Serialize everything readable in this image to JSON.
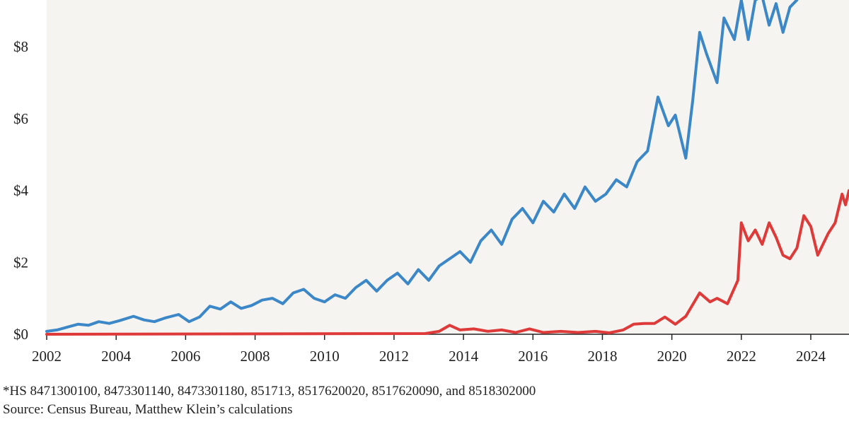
{
  "chart_data": {
    "type": "line",
    "title": "",
    "xlabel": "",
    "ylabel": "",
    "xlim": [
      2002,
      2025.1
    ],
    "ylim": [
      0,
      9.3
    ],
    "grid": false,
    "x_ticks": [
      2002,
      2004,
      2006,
      2008,
      2010,
      2012,
      2014,
      2016,
      2018,
      2020,
      2022,
      2024
    ],
    "x_tick_labels": [
      "2002",
      "2004",
      "2006",
      "2008",
      "2010",
      "2012",
      "2014",
      "2016",
      "2018",
      "2020",
      "2022",
      "2024"
    ],
    "y_ticks": [
      0,
      2,
      4,
      6,
      8
    ],
    "y_tick_labels": [
      "$0",
      "$2",
      "$4",
      "$6",
      "$8"
    ],
    "series": [
      {
        "name": "blue-series",
        "color": "#3b87c7",
        "points": [
          [
            2002.0,
            0.08
          ],
          [
            2002.3,
            0.12
          ],
          [
            2002.6,
            0.2
          ],
          [
            2002.9,
            0.28
          ],
          [
            2003.2,
            0.25
          ],
          [
            2003.5,
            0.35
          ],
          [
            2003.8,
            0.3
          ],
          [
            2004.1,
            0.38
          ],
          [
            2004.5,
            0.5
          ],
          [
            2004.8,
            0.4
          ],
          [
            2005.1,
            0.35
          ],
          [
            2005.4,
            0.45
          ],
          [
            2005.8,
            0.55
          ],
          [
            2006.1,
            0.35
          ],
          [
            2006.4,
            0.48
          ],
          [
            2006.7,
            0.78
          ],
          [
            2007.0,
            0.7
          ],
          [
            2007.3,
            0.9
          ],
          [
            2007.6,
            0.72
          ],
          [
            2007.9,
            0.8
          ],
          [
            2008.2,
            0.95
          ],
          [
            2008.5,
            1.0
          ],
          [
            2008.8,
            0.85
          ],
          [
            2009.1,
            1.15
          ],
          [
            2009.4,
            1.25
          ],
          [
            2009.7,
            1.0
          ],
          [
            2010.0,
            0.9
          ],
          [
            2010.3,
            1.1
          ],
          [
            2010.6,
            1.0
          ],
          [
            2010.9,
            1.3
          ],
          [
            2011.2,
            1.5
          ],
          [
            2011.5,
            1.2
          ],
          [
            2011.8,
            1.5
          ],
          [
            2012.1,
            1.7
          ],
          [
            2012.4,
            1.4
          ],
          [
            2012.7,
            1.8
          ],
          [
            2013.0,
            1.5
          ],
          [
            2013.3,
            1.9
          ],
          [
            2013.6,
            2.1
          ],
          [
            2013.9,
            2.3
          ],
          [
            2014.2,
            2.0
          ],
          [
            2014.5,
            2.6
          ],
          [
            2014.8,
            2.9
          ],
          [
            2015.1,
            2.5
          ],
          [
            2015.4,
            3.2
          ],
          [
            2015.7,
            3.5
          ],
          [
            2016.0,
            3.1
          ],
          [
            2016.3,
            3.7
          ],
          [
            2016.6,
            3.4
          ],
          [
            2016.9,
            3.9
          ],
          [
            2017.2,
            3.5
          ],
          [
            2017.5,
            4.1
          ],
          [
            2017.8,
            3.7
          ],
          [
            2018.1,
            3.9
          ],
          [
            2018.4,
            4.3
          ],
          [
            2018.7,
            4.1
          ],
          [
            2019.0,
            4.8
          ],
          [
            2019.3,
            5.1
          ],
          [
            2019.6,
            6.6
          ],
          [
            2019.9,
            5.8
          ],
          [
            2020.1,
            6.1
          ],
          [
            2020.4,
            4.9
          ],
          [
            2020.6,
            6.5
          ],
          [
            2020.8,
            8.4
          ],
          [
            2021.0,
            7.8
          ],
          [
            2021.3,
            7.0
          ],
          [
            2021.5,
            8.8
          ],
          [
            2021.8,
            8.2
          ],
          [
            2022.0,
            9.3
          ],
          [
            2022.2,
            8.2
          ],
          [
            2022.4,
            9.3
          ],
          [
            2022.6,
            9.4
          ],
          [
            2022.8,
            8.6
          ],
          [
            2023.0,
            9.2
          ],
          [
            2023.2,
            8.4
          ],
          [
            2023.4,
            9.1
          ],
          [
            2023.6,
            9.3
          ]
        ]
      },
      {
        "name": "red-series",
        "color": "#de3a3a",
        "points": [
          [
            2002.0,
            0.0
          ],
          [
            2012.9,
            0.02
          ],
          [
            2013.3,
            0.08
          ],
          [
            2013.6,
            0.25
          ],
          [
            2013.9,
            0.12
          ],
          [
            2014.3,
            0.15
          ],
          [
            2014.7,
            0.08
          ],
          [
            2015.1,
            0.12
          ],
          [
            2015.5,
            0.05
          ],
          [
            2015.9,
            0.15
          ],
          [
            2016.3,
            0.05
          ],
          [
            2016.8,
            0.08
          ],
          [
            2017.3,
            0.05
          ],
          [
            2017.8,
            0.08
          ],
          [
            2018.2,
            0.04
          ],
          [
            2018.6,
            0.12
          ],
          [
            2018.9,
            0.28
          ],
          [
            2019.2,
            0.3
          ],
          [
            2019.5,
            0.3
          ],
          [
            2019.8,
            0.48
          ],
          [
            2020.1,
            0.28
          ],
          [
            2020.4,
            0.5
          ],
          [
            2020.8,
            1.15
          ],
          [
            2021.1,
            0.9
          ],
          [
            2021.3,
            1.0
          ],
          [
            2021.6,
            0.85
          ],
          [
            2021.9,
            1.5
          ],
          [
            2022.0,
            3.1
          ],
          [
            2022.2,
            2.6
          ],
          [
            2022.4,
            2.9
          ],
          [
            2022.6,
            2.5
          ],
          [
            2022.8,
            3.1
          ],
          [
            2023.0,
            2.7
          ],
          [
            2023.2,
            2.2
          ],
          [
            2023.4,
            2.1
          ],
          [
            2023.6,
            2.4
          ],
          [
            2023.8,
            3.3
          ],
          [
            2024.0,
            3.0
          ],
          [
            2024.2,
            2.2
          ],
          [
            2024.5,
            2.8
          ],
          [
            2024.7,
            3.1
          ],
          [
            2024.9,
            3.9
          ],
          [
            2025.0,
            3.6
          ],
          [
            2025.1,
            4.0
          ]
        ]
      }
    ]
  },
  "footnotes": {
    "hs_codes": "*HS 8471300100, 8473301140, 8473301180, 851713, 8517620020, 8517620090, and 8518302000",
    "source": "Source: Census Bureau, Matthew Klein’s calculations"
  }
}
